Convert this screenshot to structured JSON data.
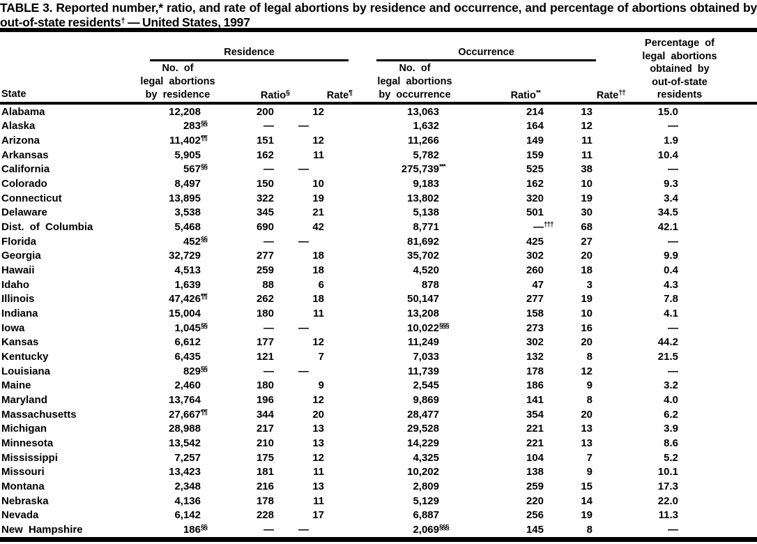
{
  "title": {
    "line1": "TABLE 3. Reported number,* ratio, and rate of legal abortions by residence and occurrence, and percentage of abortions obtained by",
    "line2_pre": "out-of-state residents",
    "line2_sup": "†",
    "line2_post": " — United States, 1997"
  },
  "table": {
    "groups": {
      "residence": "Residence",
      "occurrence": "Occurrence"
    },
    "headers": {
      "state": "State",
      "res_no": [
        "No. of",
        "legal abortions",
        "by residence"
      ],
      "res_ratio": "Ratio",
      "res_ratio_sup": "§",
      "res_rate": "Rate",
      "res_rate_sup": "¶",
      "occ_no": [
        "No. of",
        "legal abortions",
        "by occurrence"
      ],
      "occ_ratio": "Ratio",
      "occ_ratio_sup": "**",
      "occ_rate": "Rate",
      "occ_rate_sup": "††",
      "pct": [
        "Percentage of",
        "legal abortions",
        "obtained by",
        "out-of-state",
        "residents"
      ]
    },
    "rows": [
      {
        "state": "Alabama",
        "res_no": "12,208",
        "res_ratio": "200",
        "res_rate": "12",
        "occ_no": "13,063",
        "occ_ratio": "214",
        "occ_rate": "13",
        "pct": "15.0"
      },
      {
        "state": "Alaska",
        "res_no": "283",
        "res_sup": "§§",
        "res_ratio": "—",
        "res_rate": "—",
        "occ_no": "1,632",
        "occ_ratio": "164",
        "occ_rate": "12",
        "pct": "—"
      },
      {
        "state": "Arizona",
        "res_no": "11,402",
        "res_sup": "¶¶",
        "res_ratio": "151",
        "res_rate": "12",
        "occ_no": "11,266",
        "occ_ratio": "149",
        "occ_rate": "11",
        "pct": "1.9"
      },
      {
        "state": "Arkansas",
        "res_no": "5,905",
        "res_ratio": "162",
        "res_rate": "11",
        "occ_no": "5,782",
        "occ_ratio": "159",
        "occ_rate": "11",
        "pct": "10.4"
      },
      {
        "state": "California",
        "res_no": "567",
        "res_sup": "§§",
        "res_ratio": "—",
        "res_rate": "—",
        "occ_no": "275,739",
        "occ_sup": "***",
        "occ_ratio": "525",
        "occ_rate": "38",
        "pct": "—"
      },
      {
        "state": "Colorado",
        "res_no": "8,497",
        "res_ratio": "150",
        "res_rate": "10",
        "occ_no": "9,183",
        "occ_ratio": "162",
        "occ_rate": "10",
        "pct": "9.3"
      },
      {
        "state": "Connecticut",
        "res_no": "13,895",
        "res_ratio": "322",
        "res_rate": "19",
        "occ_no": "13,802",
        "occ_ratio": "320",
        "occ_rate": "19",
        "pct": "3.4"
      },
      {
        "state": "Delaware",
        "res_no": "3,538",
        "res_ratio": "345",
        "res_rate": "21",
        "occ_no": "5,138",
        "occ_ratio": "501",
        "occ_rate": "30",
        "pct": "34.5"
      },
      {
        "state": "Dist. of Columbia",
        "res_no": "5,468",
        "res_ratio": "690",
        "res_rate": "42",
        "occ_no": "8,771",
        "occ_ratio": "—",
        "occ_ratio_sup": "†††",
        "occ_rate": "68",
        "pct": "42.1"
      },
      {
        "state": "Florida",
        "res_no": "452",
        "res_sup": "§§",
        "res_ratio": "—",
        "res_rate": "—",
        "occ_no": "81,692",
        "occ_ratio": "425",
        "occ_rate": "27",
        "pct": "—"
      },
      {
        "state": "Georgia",
        "res_no": "32,729",
        "res_ratio": "277",
        "res_rate": "18",
        "occ_no": "35,702",
        "occ_ratio": "302",
        "occ_rate": "20",
        "pct": "9.9"
      },
      {
        "state": "Hawaii",
        "res_no": "4,513",
        "res_ratio": "259",
        "res_rate": "18",
        "occ_no": "4,520",
        "occ_ratio": "260",
        "occ_rate": "18",
        "pct": "0.4"
      },
      {
        "state": "Idaho",
        "res_no": "1,639",
        "res_ratio": "88",
        "res_rate": "6",
        "occ_no": "878",
        "occ_ratio": "47",
        "occ_rate": "3",
        "pct": "4.3"
      },
      {
        "state": "Illinois",
        "res_no": "47,426",
        "res_sup": "¶¶",
        "res_ratio": "262",
        "res_rate": "18",
        "occ_no": "50,147",
        "occ_ratio": "277",
        "occ_rate": "19",
        "pct": "7.8"
      },
      {
        "state": "Indiana",
        "res_no": "15,004",
        "res_ratio": "180",
        "res_rate": "11",
        "occ_no": "13,208",
        "occ_ratio": "158",
        "occ_rate": "10",
        "pct": "4.1"
      },
      {
        "state": "Iowa",
        "res_no": "1,045",
        "res_sup": "§§",
        "res_ratio": "—",
        "res_rate": "—",
        "occ_no": "10,022",
        "occ_sup": "§§§",
        "occ_ratio": "273",
        "occ_rate": "16",
        "pct": "—"
      },
      {
        "state": "Kansas",
        "res_no": "6,612",
        "res_ratio": "177",
        "res_rate": "12",
        "occ_no": "11,249",
        "occ_ratio": "302",
        "occ_rate": "20",
        "pct": "44.2"
      },
      {
        "state": "Kentucky",
        "res_no": "6,435",
        "res_ratio": "121",
        "res_rate": "7",
        "occ_no": "7,033",
        "occ_ratio": "132",
        "occ_rate": "8",
        "pct": "21.5"
      },
      {
        "state": "Louisiana",
        "res_no": "829",
        "res_sup": "§§",
        "res_ratio": "—",
        "res_rate": "—",
        "occ_no": "11,739",
        "occ_ratio": "178",
        "occ_rate": "12",
        "pct": "—"
      },
      {
        "state": "Maine",
        "res_no": "2,460",
        "res_ratio": "180",
        "res_rate": "9",
        "occ_no": "2,545",
        "occ_ratio": "186",
        "occ_rate": "9",
        "pct": "3.2"
      },
      {
        "state": "Maryland",
        "res_no": "13,764",
        "res_ratio": "196",
        "res_rate": "12",
        "occ_no": "9,869",
        "occ_ratio": "141",
        "occ_rate": "8",
        "pct": "4.0"
      },
      {
        "state": "Massachusetts",
        "res_no": "27,667",
        "res_sup": "¶¶",
        "res_ratio": "344",
        "res_rate": "20",
        "occ_no": "28,477",
        "occ_ratio": "354",
        "occ_rate": "20",
        "pct": "6.2"
      },
      {
        "state": "Michigan",
        "res_no": "28,988",
        "res_ratio": "217",
        "res_rate": "13",
        "occ_no": "29,528",
        "occ_ratio": "221",
        "occ_rate": "13",
        "pct": "3.9"
      },
      {
        "state": "Minnesota",
        "res_no": "13,542",
        "res_ratio": "210",
        "res_rate": "13",
        "occ_no": "14,229",
        "occ_ratio": "221",
        "occ_rate": "13",
        "pct": "8.6"
      },
      {
        "state": "Mississippi",
        "res_no": "7,257",
        "res_ratio": "175",
        "res_rate": "12",
        "occ_no": "4,325",
        "occ_ratio": "104",
        "occ_rate": "7",
        "pct": "5.2"
      },
      {
        "state": "Missouri",
        "res_no": "13,423",
        "res_ratio": "181",
        "res_rate": "11",
        "occ_no": "10,202",
        "occ_ratio": "138",
        "occ_rate": "9",
        "pct": "10.1"
      },
      {
        "state": "Montana",
        "res_no": "2,348",
        "res_ratio": "216",
        "res_rate": "13",
        "occ_no": "2,809",
        "occ_ratio": "259",
        "occ_rate": "15",
        "pct": "17.3"
      },
      {
        "state": "Nebraska",
        "res_no": "4,136",
        "res_ratio": "178",
        "res_rate": "11",
        "occ_no": "5,129",
        "occ_ratio": "220",
        "occ_rate": "14",
        "pct": "22.0"
      },
      {
        "state": "Nevada",
        "res_no": "6,142",
        "res_ratio": "228",
        "res_rate": "17",
        "occ_no": "6,887",
        "occ_ratio": "256",
        "occ_rate": "19",
        "pct": "11.3"
      },
      {
        "state": "New Hampshire",
        "res_no": "186",
        "res_sup": "§§",
        "res_ratio": "—",
        "res_rate": "—",
        "occ_no": "2,069",
        "occ_sup": "§§§",
        "occ_ratio": "145",
        "occ_rate": "8",
        "pct": "—"
      }
    ]
  }
}
